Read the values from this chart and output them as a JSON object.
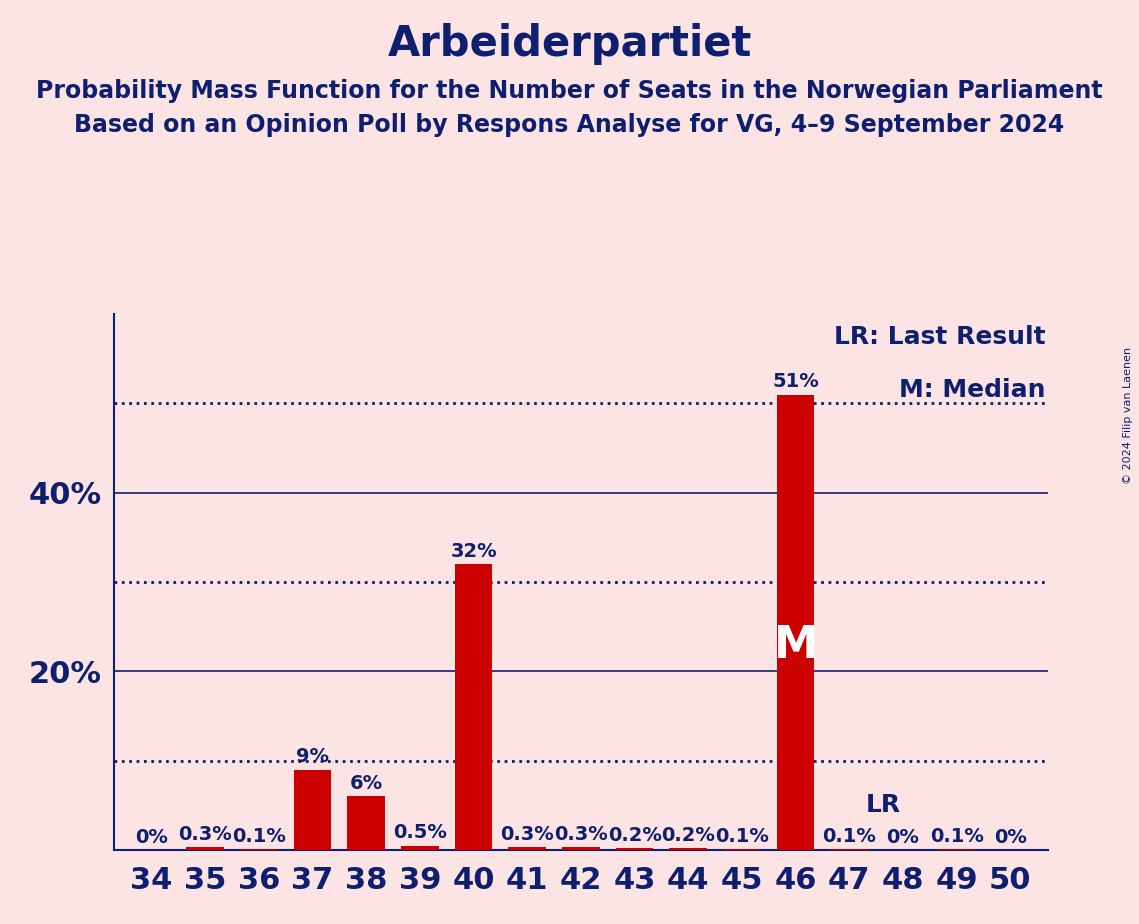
{
  "title": "Arbeiderpartiet",
  "subtitle1": "Probability Mass Function for the Number of Seats in the Norwegian Parliament",
  "subtitle2": "Based on an Opinion Poll by Respons Analyse for VG, 4–9 September 2024",
  "copyright": "© 2024 Filip van Laenen",
  "seats": [
    34,
    35,
    36,
    37,
    38,
    39,
    40,
    41,
    42,
    43,
    44,
    45,
    46,
    47,
    48,
    49,
    50
  ],
  "probabilities": [
    0.0,
    0.3,
    0.1,
    9.0,
    6.0,
    0.5,
    32.0,
    0.3,
    0.3,
    0.2,
    0.2,
    0.1,
    51.0,
    0.1,
    0.0,
    0.1,
    0.0
  ],
  "bar_color": "#cc0000",
  "median_seat": 46,
  "lr_value": 51.5,
  "background_color": "#fce4e4",
  "text_color": "#0d1f6e",
  "title_fontsize": 30,
  "subtitle_fontsize": 17,
  "axis_tick_fontsize": 22,
  "bar_label_fontsize": 14,
  "legend_fontsize": 18,
  "solid_yticks": [
    20,
    40
  ],
  "dotted_yticks": [
    10,
    30,
    50
  ],
  "ylim": [
    0,
    60
  ],
  "dotted_line_color": "#0d1f6e",
  "solid_line_color": "#0d1f6e"
}
